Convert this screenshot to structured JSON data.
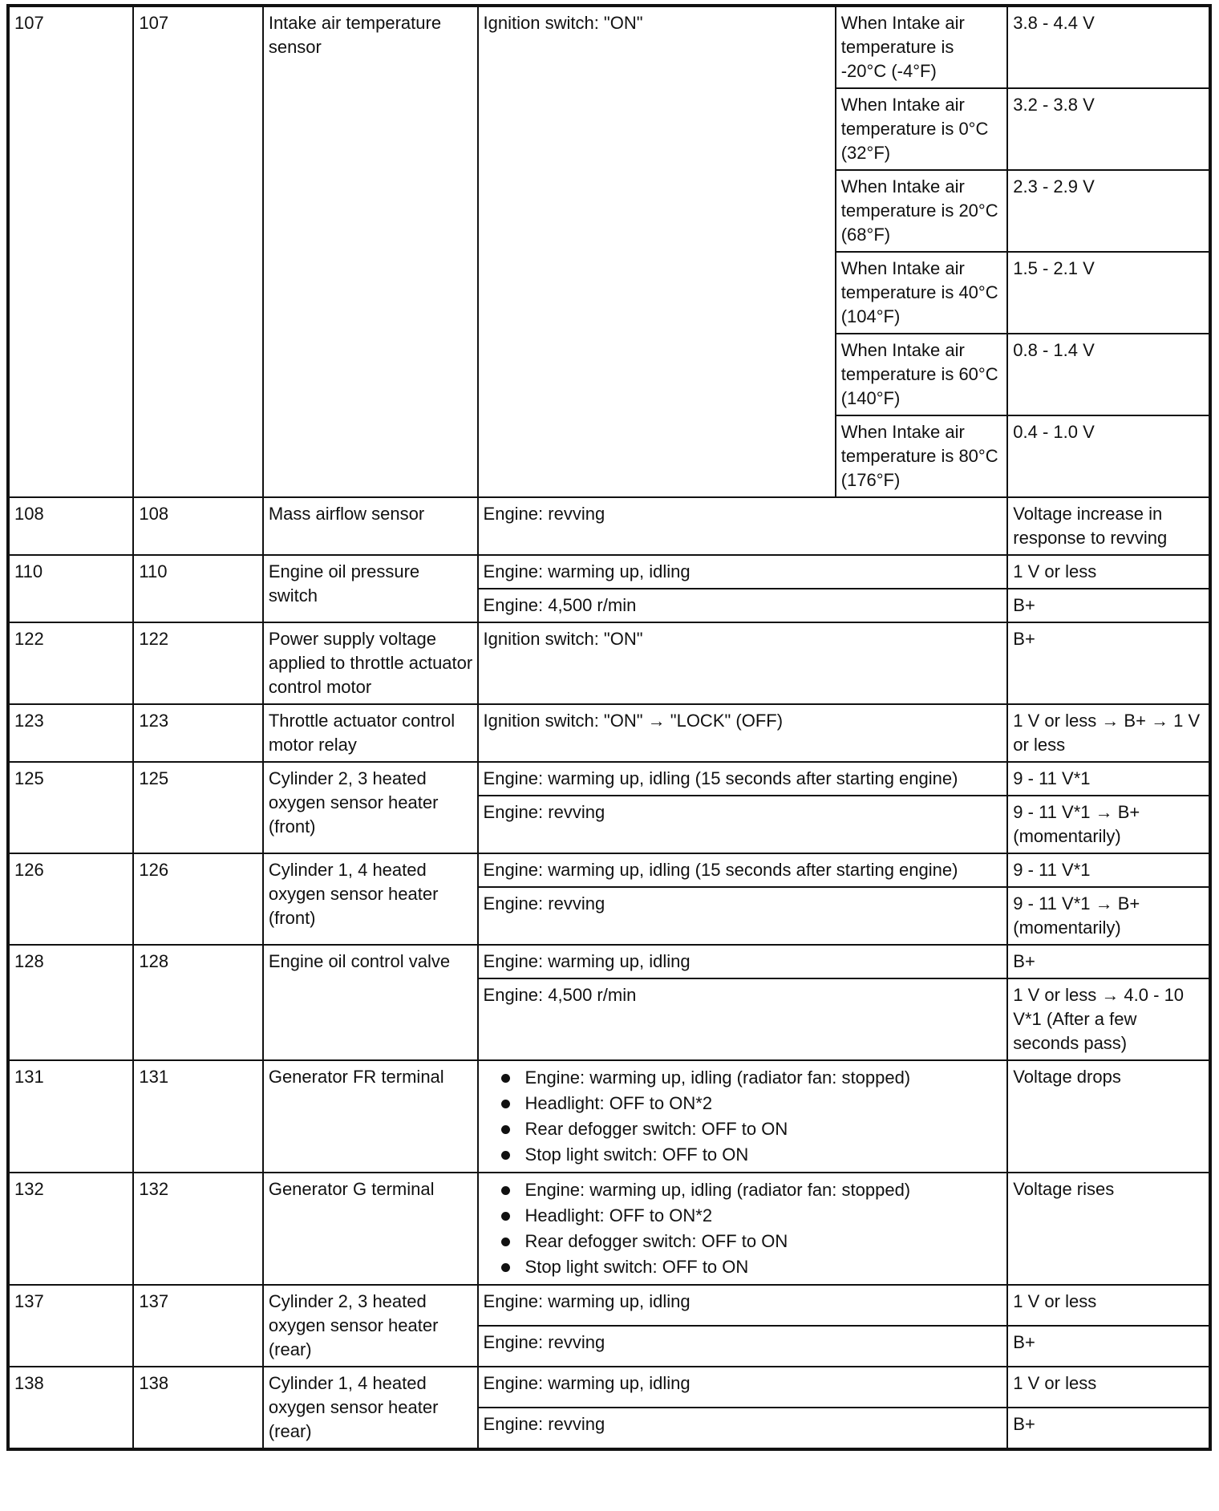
{
  "table": {
    "rows": [
      {
        "pin1": "107",
        "pin2": "107",
        "signal": "Intake air temperature sensor",
        "condition": "Ignition switch: \"ON\"",
        "subs": [
          {
            "detail": "When Intake air temperature is -20°C (-4°F)",
            "value": "3.8 - 4.4 V"
          },
          {
            "detail": "When Intake air temperature is 0°C (32°F)",
            "value": "3.2 - 3.8 V"
          },
          {
            "detail": "When Intake air temperature is 20°C (68°F)",
            "value": "2.3 - 2.9 V"
          },
          {
            "detail": "When Intake air temperature is 40°C (104°F)",
            "value": "1.5 - 2.1 V"
          },
          {
            "detail": "When Intake air temperature is 60°C (140°F)",
            "value": "0.8 - 1.4 V"
          },
          {
            "detail": "When Intake air temperature is 80°C (176°F)",
            "value": "0.4 - 1.0 V"
          }
        ]
      },
      {
        "pin1": "108",
        "pin2": "108",
        "signal": "Mass airflow sensor",
        "conditions": [
          {
            "condition": "Engine: revving",
            "value": "Voltage increase in response to revving"
          }
        ]
      },
      {
        "pin1": "110",
        "pin2": "110",
        "signal": "Engine oil pressure switch",
        "conditions": [
          {
            "condition": "Engine: warming up, idling",
            "value": "1 V or less"
          },
          {
            "condition": "Engine: 4,500 r/min",
            "value": "B+"
          }
        ]
      },
      {
        "pin1": "122",
        "pin2": "122",
        "signal": "Power supply voltage applied to throttle actuator control motor",
        "conditions": [
          {
            "condition": "Ignition switch: \"ON\"",
            "value": "B+"
          }
        ]
      },
      {
        "pin1": "123",
        "pin2": "123",
        "signal": "Throttle actuator control motor relay",
        "conditions": [
          {
            "condition": "Ignition switch: \"ON\" → \"LOCK\" (OFF)",
            "value": "1 V or less → B+ → 1 V or less"
          }
        ]
      },
      {
        "pin1": "125",
        "pin2": "125",
        "signal": "Cylinder 2, 3 heated oxygen sensor heater (front)",
        "conditions": [
          {
            "condition": "Engine: warming up, idling (15 seconds after starting engine)",
            "value": "9 - 11 V*1"
          },
          {
            "condition": "Engine: revving",
            "value": "9 - 11 V*1 → B+ (momentarily)"
          }
        ]
      },
      {
        "pin1": "126",
        "pin2": "126",
        "signal": "Cylinder 1, 4 heated oxygen sensor heater (front)",
        "conditions": [
          {
            "condition": "Engine: warming up, idling (15 seconds after starting engine)",
            "value": "9 - 11 V*1"
          },
          {
            "condition": "Engine: revving",
            "value": "9 - 11 V*1 → B+ (momentarily)"
          }
        ]
      },
      {
        "pin1": "128",
        "pin2": "128",
        "signal": "Engine oil control valve",
        "conditions": [
          {
            "condition": "Engine: warming up, idling",
            "value": "B+"
          },
          {
            "condition": "Engine: 4,500 r/min",
            "value": "1 V or less → 4.0 - 10 V*1 (After a few seconds pass)"
          }
        ]
      },
      {
        "pin1": "131",
        "pin2": "131",
        "signal": "Generator FR terminal",
        "conditions": [
          {
            "bullets": [
              "Engine: warming up, idling (radiator fan: stopped)",
              "Headlight: OFF to ON*2",
              "Rear defogger switch: OFF to ON",
              "Stop light switch: OFF to ON"
            ],
            "value": "Voltage drops"
          }
        ]
      },
      {
        "pin1": "132",
        "pin2": "132",
        "signal": "Generator G terminal",
        "conditions": [
          {
            "bullets": [
              "Engine: warming up, idling (radiator fan: stopped)",
              "Headlight: OFF to ON*2",
              "Rear defogger switch: OFF to ON",
              "Stop light switch: OFF to ON"
            ],
            "value": "Voltage rises"
          }
        ]
      },
      {
        "pin1": "137",
        "pin2": "137",
        "signal": "Cylinder 2, 3 heated oxygen sensor heater (rear)",
        "conditions": [
          {
            "condition": "Engine: warming up, idling",
            "value": "1 V or less"
          },
          {
            "condition": "Engine: revving",
            "value": "B+"
          }
        ]
      },
      {
        "pin1": "138",
        "pin2": "138",
        "signal": "Cylinder 1, 4 heated oxygen sensor heater (rear)",
        "conditions": [
          {
            "condition": "Engine: warming up, idling",
            "value": "1 V or less"
          },
          {
            "condition": "Engine: revving",
            "value": "B+"
          }
        ]
      }
    ]
  }
}
